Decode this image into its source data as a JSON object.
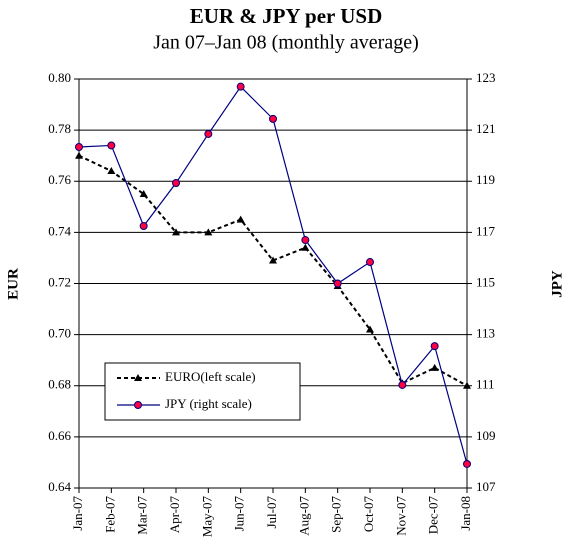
{
  "chart_data": {
    "type": "line",
    "title": "EUR & JPY per USD",
    "subtitle": "Jan 07–Jan 08 (monthly average)",
    "ylabel": "EUR",
    "y2label": "JPY",
    "categories": [
      "Jan-07",
      "Feb-07",
      "Mar-07",
      "Apr-07",
      "May-07",
      "Jun-07",
      "Jul-07",
      "Aug-07",
      "Sep-07",
      "Oct-07",
      "Nov-07",
      "Dec-07",
      "Jan-08"
    ],
    "series": [
      {
        "name": "EURO(left scale)",
        "color": "#000000",
        "line_style": "dashed",
        "marker": "triangle",
        "marker_color": "#000000",
        "values": [
          0.77,
          0.764,
          0.755,
          0.74,
          0.74,
          0.745,
          0.729,
          0.734,
          0.719,
          0.702,
          0.681,
          0.687,
          0.68
        ]
      },
      {
        "name": "JPY (right scale)",
        "color": "#000080",
        "line_style": "solid",
        "marker": "circle",
        "marker_color": "#ff0040",
        "axis": "y2",
        "values": [
          120.34,
          120.4,
          117.25,
          118.93,
          120.85,
          122.7,
          121.44,
          116.7,
          115.0,
          115.84,
          111.03,
          112.55,
          107.94
        ]
      }
    ],
    "ylim": [
      0.64,
      0.8
    ],
    "yticks": [
      {
        "value": 0.64,
        "label": "0.64"
      },
      {
        "value": 0.66,
        "label": "0.66"
      },
      {
        "value": 0.68,
        "label": "0.68"
      },
      {
        "value": 0.7,
        "label": "0.70"
      },
      {
        "value": 0.72,
        "label": "0.72"
      },
      {
        "value": 0.74,
        "label": "0.74"
      },
      {
        "value": 0.76,
        "label": "0.76"
      },
      {
        "value": 0.78,
        "label": "0.78"
      },
      {
        "value": 0.8,
        "label": "0.80"
      }
    ],
    "y2lim": [
      107,
      123
    ],
    "y2ticks": [
      107,
      109,
      111,
      113,
      115,
      117,
      119,
      121,
      123
    ],
    "grid": true,
    "legend": "lower left"
  }
}
